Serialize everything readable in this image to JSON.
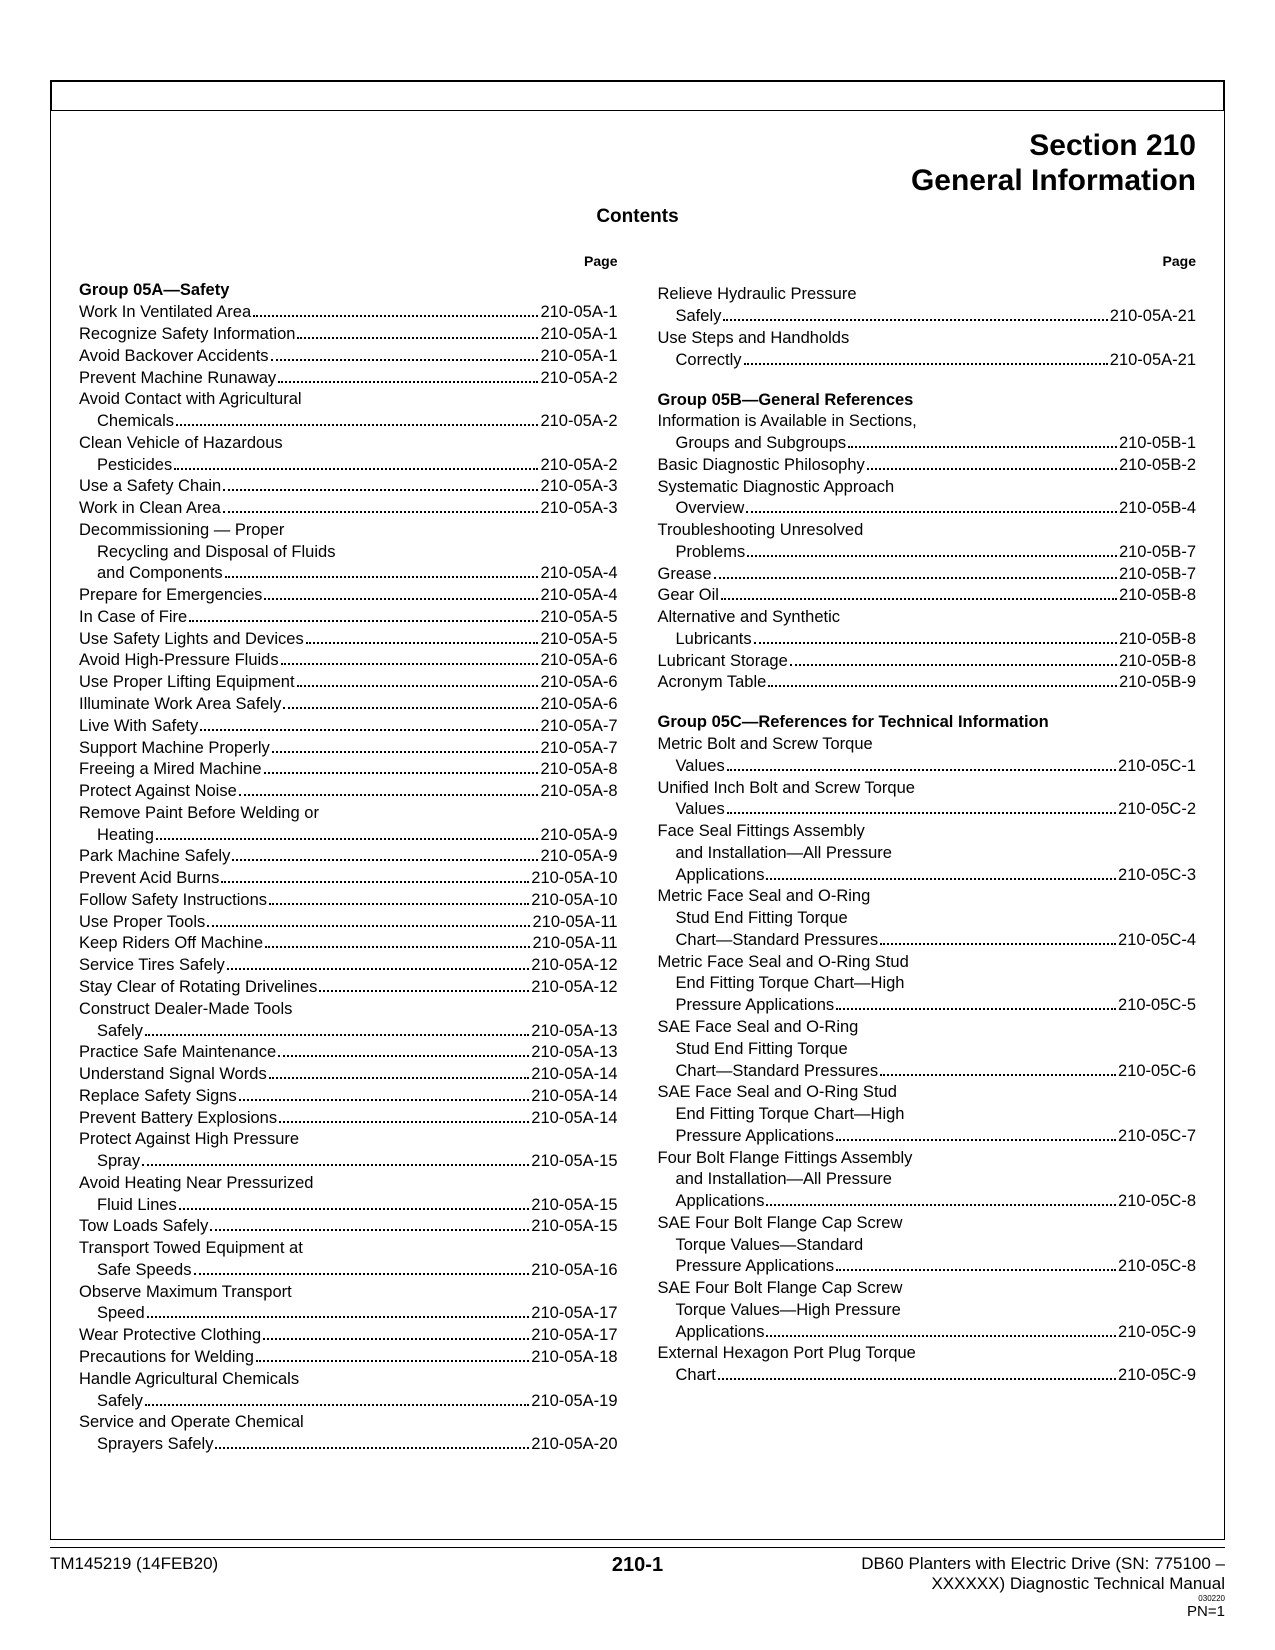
{
  "section_number": "Section 210",
  "section_title": "General Information",
  "contents_label": "Contents",
  "page_label": "Page",
  "footer": {
    "left": "TM145219 (14FEB20)",
    "center": "210-1",
    "right_line1": "DB60 Planters with Electric Drive (SN: 775100 –",
    "right_line2": "XXXXXX) Diagnostic Technical Manual",
    "tiny": "030220",
    "pn": "PN=1"
  },
  "left_col": {
    "group": "Group 05A—Safety",
    "entries": [
      {
        "label": "Work In Ventilated Area",
        "page": "210-05A-1"
      },
      {
        "label": "Recognize Safety Information",
        "page": "210-05A-1"
      },
      {
        "label": "Avoid Backover Accidents",
        "page": "210-05A-1"
      },
      {
        "label": "Prevent Machine Runaway",
        "page": "210-05A-2"
      },
      {
        "cont": "Avoid Contact with Agricultural"
      },
      {
        "label": "Chemicals",
        "page": "210-05A-2",
        "indent": true
      },
      {
        "cont": "Clean Vehicle of Hazardous"
      },
      {
        "label": "Pesticides",
        "page": "210-05A-2",
        "indent": true
      },
      {
        "label": "Use a Safety Chain",
        "page": "210-05A-3"
      },
      {
        "label": "Work in Clean Area",
        "page": "210-05A-3"
      },
      {
        "cont": "Decommissioning — Proper"
      },
      {
        "cont": "Recycling and Disposal of Fluids",
        "indent": true
      },
      {
        "label": "and Components",
        "page": "210-05A-4",
        "indent": true
      },
      {
        "label": "Prepare for Emergencies",
        "page": "210-05A-4"
      },
      {
        "label": "In Case of Fire",
        "page": "210-05A-5"
      },
      {
        "label": "Use Safety Lights and Devices",
        "page": "210-05A-5"
      },
      {
        "label": "Avoid High-Pressure Fluids",
        "page": "210-05A-6"
      },
      {
        "label": "Use Proper Lifting Equipment",
        "page": "210-05A-6"
      },
      {
        "label": "Illuminate Work Area Safely",
        "page": "210-05A-6"
      },
      {
        "label": "Live With Safety",
        "page": "210-05A-7"
      },
      {
        "label": "Support Machine Properly",
        "page": "210-05A-7"
      },
      {
        "label": "Freeing a Mired Machine",
        "page": "210-05A-8"
      },
      {
        "label": "Protect Against Noise",
        "page": "210-05A-8"
      },
      {
        "cont": "Remove Paint Before Welding or"
      },
      {
        "label": "Heating",
        "page": "210-05A-9",
        "indent": true
      },
      {
        "label": "Park Machine Safely",
        "page": "210-05A-9"
      },
      {
        "label": "Prevent Acid Burns",
        "page": "210-05A-10"
      },
      {
        "label": "Follow Safety Instructions",
        "page": "210-05A-10"
      },
      {
        "label": "Use Proper Tools",
        "page": "210-05A-11"
      },
      {
        "label": "Keep Riders Off Machine",
        "page": "210-05A-11"
      },
      {
        "label": "Service Tires Safely",
        "page": "210-05A-12"
      },
      {
        "label": "Stay Clear of Rotating Drivelines",
        "page": "210-05A-12"
      },
      {
        "cont": "Construct Dealer-Made Tools"
      },
      {
        "label": "Safely",
        "page": "210-05A-13",
        "indent": true
      },
      {
        "label": "Practice Safe Maintenance",
        "page": "210-05A-13"
      },
      {
        "label": "Understand Signal Words",
        "page": "210-05A-14"
      },
      {
        "label": "Replace Safety Signs",
        "page": "210-05A-14"
      },
      {
        "label": "Prevent Battery Explosions",
        "page": "210-05A-14"
      },
      {
        "cont": "Protect Against High Pressure"
      },
      {
        "label": "Spray",
        "page": "210-05A-15",
        "indent": true
      },
      {
        "cont": "Avoid Heating Near Pressurized"
      },
      {
        "label": "Fluid Lines",
        "page": "210-05A-15",
        "indent": true
      },
      {
        "label": "Tow Loads Safely",
        "page": "210-05A-15"
      },
      {
        "cont": "Transport Towed Equipment at"
      },
      {
        "label": "Safe Speeds",
        "page": "210-05A-16",
        "indent": true
      },
      {
        "cont": "Observe Maximum Transport"
      },
      {
        "label": "Speed",
        "page": "210-05A-17",
        "indent": true
      },
      {
        "label": "Wear Protective Clothing",
        "page": "210-05A-17"
      },
      {
        "label": "Precautions for Welding",
        "page": "210-05A-18"
      },
      {
        "cont": "Handle Agricultural Chemicals"
      },
      {
        "label": "Safely",
        "page": "210-05A-19",
        "indent": true
      },
      {
        "cont": "Service and Operate Chemical"
      },
      {
        "label": "Sprayers Safely",
        "page": "210-05A-20",
        "indent": true
      }
    ]
  },
  "right_col": {
    "top_entries": [
      {
        "cont": "Relieve Hydraulic Pressure"
      },
      {
        "label": "Safely",
        "page": "210-05A-21",
        "indent": true
      },
      {
        "cont": "Use Steps and Handholds"
      },
      {
        "label": "Correctly",
        "page": "210-05A-21",
        "indent": true
      }
    ],
    "group_b": "Group 05B—General References",
    "entries_b": [
      {
        "cont": "Information is Available in Sections,"
      },
      {
        "label": "Groups and Subgroups",
        "page": "210-05B-1",
        "indent": true
      },
      {
        "label": "Basic Diagnostic Philosophy",
        "page": "210-05B-2"
      },
      {
        "cont": "Systematic Diagnostic Approach"
      },
      {
        "label": "Overview",
        "page": "210-05B-4",
        "indent": true
      },
      {
        "cont": "Troubleshooting Unresolved"
      },
      {
        "label": "Problems",
        "page": "210-05B-7",
        "indent": true
      },
      {
        "label": "Grease",
        "page": "210-05B-7"
      },
      {
        "label": "Gear Oil",
        "page": "210-05B-8"
      },
      {
        "cont": "Alternative and Synthetic"
      },
      {
        "label": "Lubricants",
        "page": "210-05B-8",
        "indent": true
      },
      {
        "label": "Lubricant Storage",
        "page": "210-05B-8"
      },
      {
        "label": "Acronym Table",
        "page": "210-05B-9"
      }
    ],
    "group_c": "Group 05C—References for Technical Information",
    "entries_c": [
      {
        "cont": "Metric Bolt and Screw Torque"
      },
      {
        "label": "Values",
        "page": "210-05C-1",
        "indent": true
      },
      {
        "cont": "Unified Inch Bolt and Screw Torque"
      },
      {
        "label": "Values",
        "page": "210-05C-2",
        "indent": true
      },
      {
        "cont": "Face Seal Fittings Assembly"
      },
      {
        "cont": "and Installation—All Pressure",
        "indent": true
      },
      {
        "label": "Applications",
        "page": "210-05C-3",
        "indent": true
      },
      {
        "cont": "Metric Face Seal and O-Ring"
      },
      {
        "cont": "Stud End Fitting Torque",
        "indent": true
      },
      {
        "label": "Chart—Standard Pressures",
        "page": "210-05C-4",
        "indent": true
      },
      {
        "cont": "Metric Face Seal and O-Ring Stud"
      },
      {
        "cont": "End Fitting Torque Chart—High",
        "indent": true
      },
      {
        "label": "Pressure Applications",
        "page": "210-05C-5",
        "indent": true
      },
      {
        "cont": "SAE Face Seal and O-Ring"
      },
      {
        "cont": "Stud End Fitting Torque",
        "indent": true
      },
      {
        "label": "Chart—Standard Pressures",
        "page": "210-05C-6",
        "indent": true
      },
      {
        "cont": "SAE Face Seal and O-Ring Stud"
      },
      {
        "cont": "End Fitting Torque Chart—High",
        "indent": true
      },
      {
        "label": "Pressure Applications",
        "page": "210-05C-7",
        "indent": true
      },
      {
        "cont": "Four Bolt Flange Fittings Assembly"
      },
      {
        "cont": "and Installation—All Pressure",
        "indent": true
      },
      {
        "label": "Applications",
        "page": "210-05C-8",
        "indent": true
      },
      {
        "cont": "SAE Four Bolt Flange Cap Screw"
      },
      {
        "cont": "Torque Values—Standard",
        "indent": true
      },
      {
        "label": "Pressure Applications",
        "page": "210-05C-8",
        "indent": true
      },
      {
        "cont": "SAE Four Bolt Flange Cap Screw"
      },
      {
        "cont": "Torque Values—High Pressure",
        "indent": true
      },
      {
        "label": "Applications",
        "page": "210-05C-9",
        "indent": true
      },
      {
        "cont": "External Hexagon Port Plug Torque"
      },
      {
        "label": "Chart",
        "page": "210-05C-9",
        "indent": true
      }
    ]
  }
}
